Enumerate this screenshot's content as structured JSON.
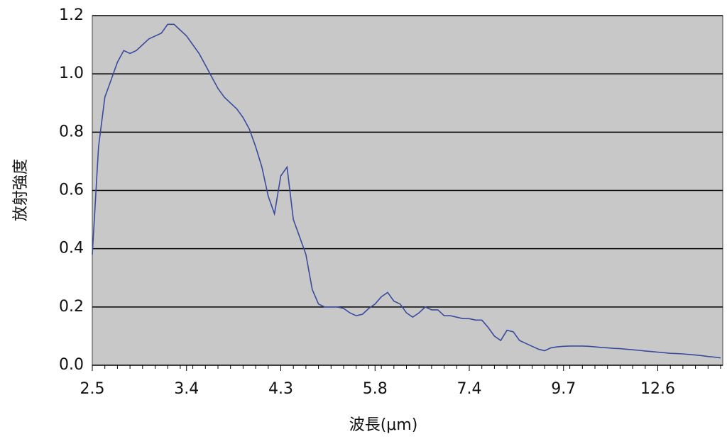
{
  "chart_data": {
    "type": "line",
    "x_label": "波長(μm)",
    "y_label": "放射強度",
    "categories": [
      "2.5",
      null,
      null,
      null,
      null,
      null,
      null,
      null,
      null,
      null,
      null,
      null,
      null,
      null,
      null,
      "3.4",
      null,
      null,
      null,
      null,
      null,
      null,
      null,
      null,
      null,
      null,
      null,
      null,
      null,
      null,
      "4.3",
      null,
      null,
      null,
      null,
      null,
      null,
      null,
      null,
      null,
      null,
      null,
      null,
      null,
      null,
      "5.8",
      null,
      null,
      null,
      null,
      null,
      null,
      null,
      null,
      null,
      null,
      null,
      null,
      null,
      null,
      "7.4",
      null,
      null,
      null,
      null,
      null,
      null,
      null,
      null,
      null,
      null,
      null,
      null,
      null,
      null,
      "9.7",
      null,
      null,
      null,
      null,
      null,
      null,
      null,
      null,
      null,
      null,
      null,
      null,
      null,
      null,
      "12.6",
      null,
      null,
      null,
      null,
      null,
      null,
      null,
      null,
      null,
      null
    ],
    "series": [
      {
        "color": "#3a4a9c",
        "values": [
          0.38,
          0.75,
          0.92,
          0.98,
          1.04,
          1.08,
          1.07,
          1.08,
          1.1,
          1.12,
          1.13,
          1.14,
          1.17,
          1.17,
          1.15,
          1.13,
          1.1,
          1.07,
          1.03,
          0.99,
          0.95,
          0.92,
          0.9,
          0.88,
          0.85,
          0.81,
          0.75,
          0.68,
          0.58,
          0.52,
          0.65,
          0.68,
          0.5,
          0.44,
          0.38,
          0.26,
          0.21,
          0.2,
          0.2,
          0.2,
          0.195,
          0.18,
          0.17,
          0.175,
          0.195,
          0.21,
          0.235,
          0.25,
          0.22,
          0.21,
          0.18,
          0.165,
          0.18,
          0.2,
          0.19,
          0.19,
          0.17,
          0.17,
          0.165,
          0.16,
          0.16,
          0.155,
          0.155,
          0.13,
          0.1,
          0.085,
          0.12,
          0.115,
          0.085,
          0.075,
          0.065,
          0.055,
          0.05,
          0.06,
          0.063,
          0.065,
          0.066,
          0.066,
          0.066,
          0.065,
          0.063,
          0.061,
          0.06,
          0.058,
          0.057,
          0.055,
          0.053,
          0.051,
          0.049,
          0.047,
          0.045,
          0.043,
          0.041,
          0.04,
          0.039,
          0.037,
          0.035,
          0.033,
          0.03,
          0.028,
          0.025
        ]
      }
    ],
    "ylim": [
      0,
      1.2
    ],
    "yticks": [
      {
        "value": 0,
        "label": "0.0"
      },
      0.2,
      0.4,
      0.6,
      0.8,
      {
        "value": 1,
        "label": "1.0"
      },
      1.2
    ],
    "grid": true,
    "plot_background": "#c8c8c8"
  }
}
